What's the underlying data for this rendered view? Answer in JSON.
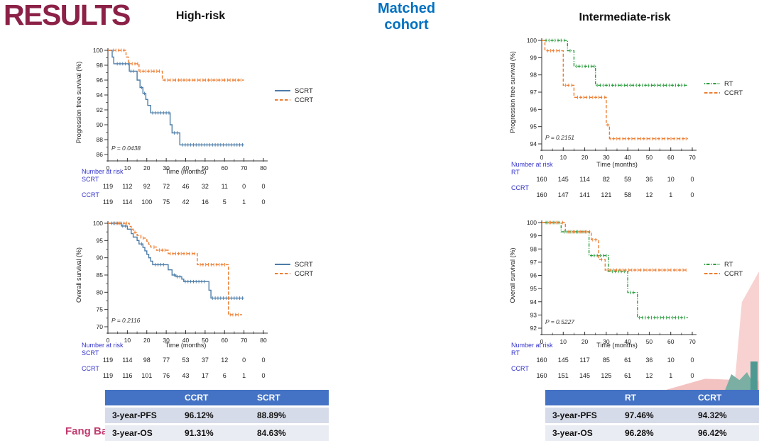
{
  "slide": {
    "title": "RESULTS",
    "cohort_label": "Matched cohort",
    "left_group_label": "High-risk",
    "right_group_label": "Intermediate-risk",
    "author": "Fang Bai"
  },
  "colors": {
    "results_title": "#8C2148",
    "cohort_label": "#0070C0",
    "author": "#C23A6F",
    "scrt_blue": "#4C7CA8",
    "ccrt_orange": "#ED7D31",
    "rt_green": "#2F9E41",
    "risk_label_blue": "#3333CC",
    "table_header_blue": "#4472C4",
    "table_row_light": "#D6DBE9",
    "table_row_lighter": "#EAECF3"
  },
  "chart_data": [
    {
      "id": "hr_pfs",
      "type": "line",
      "subtype": "kaplan-meier-step",
      "group": "High-risk",
      "ylabel": "Progression free survival (%)",
      "xlabel": "Time (months)",
      "xlim": [
        0,
        80
      ],
      "ylim": [
        86,
        100
      ],
      "xticks": [
        0,
        10,
        20,
        30,
        40,
        50,
        60,
        70,
        80
      ],
      "yticks": [
        86,
        88,
        90,
        92,
        94,
        96,
        98,
        100
      ],
      "p_value": "P = 0.0438",
      "legend_position": "right",
      "series": [
        {
          "name": "SCRT",
          "color": "#4C7CA8",
          "style": "solid",
          "points": [
            [
              0,
              100
            ],
            [
              2.2,
              99.1
            ],
            [
              3,
              98.2
            ],
            [
              11,
              97.2
            ],
            [
              15,
              96.0
            ],
            [
              16.5,
              95.0
            ],
            [
              18,
              94.2
            ],
            [
              19.5,
              93.4
            ],
            [
              20.5,
              92.6
            ],
            [
              22,
              91.6
            ],
            [
              32,
              90.0
            ],
            [
              33,
              88.9
            ],
            [
              37,
              87.3
            ],
            [
              70,
              87.3
            ]
          ]
        },
        {
          "name": "CCRT",
          "color": "#ED7D31",
          "style": "dashed",
          "points": [
            [
              0,
              100
            ],
            [
              9.3,
              99.1
            ],
            [
              10.5,
              98.2
            ],
            [
              16,
              97.2
            ],
            [
              28,
              96.0
            ],
            [
              70,
              96.0
            ]
          ]
        }
      ],
      "risk_table": {
        "label": "Number at risk",
        "rows": [
          {
            "name": "SCRT",
            "values": [
              119,
              112,
              92,
              72,
              46,
              32,
              11,
              0,
              0
            ]
          },
          {
            "name": "CCRT",
            "values": [
              119,
              114,
              100,
              75,
              42,
              16,
              5,
              1,
              0
            ]
          }
        ]
      }
    },
    {
      "id": "hr_os",
      "type": "line",
      "subtype": "kaplan-meier-step",
      "group": "High-risk",
      "ylabel": "Overall survival (%)",
      "xlabel": "Time (months)",
      "xlim": [
        0,
        80
      ],
      "ylim": [
        70,
        100
      ],
      "xticks": [
        0,
        10,
        20,
        30,
        40,
        50,
        60,
        70,
        80
      ],
      "yticks": [
        70,
        75,
        80,
        85,
        90,
        95,
        100
      ],
      "p_value": "P = 0.2116",
      "legend_position": "right",
      "series": [
        {
          "name": "SCRT",
          "color": "#4C7CA8",
          "style": "solid",
          "points": [
            [
              0,
              100
            ],
            [
              7,
              99.2
            ],
            [
              10,
              98.3
            ],
            [
              12,
              97.0
            ],
            [
              13,
              96.0
            ],
            [
              15,
              95.0
            ],
            [
              16,
              94.0
            ],
            [
              18,
              93.0
            ],
            [
              19,
              92.0
            ],
            [
              20,
              91.0
            ],
            [
              21,
              90.0
            ],
            [
              22,
              89.0
            ],
            [
              23,
              88.0
            ],
            [
              30,
              88.0
            ],
            [
              31,
              86.5
            ],
            [
              33,
              85.0
            ],
            [
              35,
              84.5
            ],
            [
              38,
              83.8
            ],
            [
              39,
              83.1
            ],
            [
              51,
              83.1
            ],
            [
              52,
              80.6
            ],
            [
              53,
              78.3
            ],
            [
              70,
              78.3
            ]
          ]
        },
        {
          "name": "CCRT",
          "color": "#ED7D31",
          "style": "dashed",
          "points": [
            [
              0,
              100
            ],
            [
              11,
              99.1
            ],
            [
              12,
              98.3
            ],
            [
              13,
              97.4
            ],
            [
              15,
              96.5
            ],
            [
              17,
              95.7
            ],
            [
              20,
              94.8
            ],
            [
              21,
              93.9
            ],
            [
              22,
              93.1
            ],
            [
              25,
              92.2
            ],
            [
              31,
              91.2
            ],
            [
              46,
              88.0
            ],
            [
              62,
              73.5
            ],
            [
              69,
              73.5
            ]
          ]
        }
      ],
      "risk_table": {
        "label": "Number at risk",
        "rows": [
          {
            "name": "SCRT",
            "values": [
              119,
              114,
              98,
              77,
              53,
              37,
              12,
              0,
              0
            ]
          },
          {
            "name": "CCRT",
            "values": [
              119,
              116,
              101,
              76,
              43,
              17,
              6,
              1,
              0
            ]
          }
        ]
      }
    },
    {
      "id": "ir_pfs",
      "type": "line",
      "subtype": "kaplan-meier-step",
      "group": "Intermediate-risk",
      "ylabel": "Progression free survival (%)",
      "xlabel": "Time (months)",
      "xlim": [
        0,
        70
      ],
      "ylim": [
        94,
        100
      ],
      "xticks": [
        0,
        10,
        20,
        30,
        40,
        50,
        60,
        70
      ],
      "yticks": [
        94,
        95,
        96,
        97,
        98,
        99,
        100
      ],
      "p_value": "P = 0.2151",
      "legend_position": "right",
      "series": [
        {
          "name": "RT",
          "color": "#2F9E41",
          "style": "dashdot",
          "points": [
            [
              0,
              100
            ],
            [
              12,
              99.4
            ],
            [
              15,
              98.5
            ],
            [
              25,
              97.4
            ],
            [
              68,
              97.4
            ]
          ]
        },
        {
          "name": "CCRT",
          "color": "#ED7D31",
          "style": "dashed",
          "points": [
            [
              0,
              100
            ],
            [
              1.5,
              99.4
            ],
            [
              10,
              97.4
            ],
            [
              15,
              96.7
            ],
            [
              30,
              95.1
            ],
            [
              31.5,
              94.3
            ],
            [
              68,
              94.3
            ]
          ]
        }
      ],
      "risk_table": {
        "label": "Number at risk",
        "rows": [
          {
            "name": "RT",
            "values": [
              160,
              145,
              114,
              82,
              59,
              36,
              10,
              0
            ]
          },
          {
            "name": "CCRT",
            "values": [
              160,
              147,
              141,
              121,
              58,
              12,
              1,
              0
            ]
          }
        ]
      }
    },
    {
      "id": "ir_os",
      "type": "line",
      "subtype": "kaplan-meier-step",
      "group": "Intermediate-risk",
      "ylabel": "Overall survival (%)",
      "xlabel": "Time (months)",
      "xlim": [
        0,
        70
      ],
      "ylim": [
        92,
        100
      ],
      "xticks": [
        0,
        10,
        20,
        30,
        40,
        50,
        60,
        70
      ],
      "yticks": [
        92,
        93,
        94,
        95,
        96,
        97,
        98,
        99,
        100
      ],
      "p_value": "P = 0.5227",
      "legend_position": "right",
      "series": [
        {
          "name": "RT",
          "color": "#2F9E41",
          "style": "dashdot",
          "points": [
            [
              0,
              100
            ],
            [
              9,
              99.3
            ],
            [
              22,
              97.5
            ],
            [
              31,
              96.3
            ],
            [
              40,
              94.7
            ],
            [
              44.5,
              92.8
            ],
            [
              68,
              92.8
            ]
          ]
        },
        {
          "name": "CCRT",
          "color": "#ED7D31",
          "style": "dashed",
          "points": [
            [
              0,
              100
            ],
            [
              11,
              99.3
            ],
            [
              23,
              98.7
            ],
            [
              26.5,
              97.2
            ],
            [
              29.5,
              96.4
            ],
            [
              68,
              96.4
            ]
          ]
        }
      ],
      "risk_table": {
        "label": "Number at risk",
        "rows": [
          {
            "name": "RT",
            "values": [
              160,
              145,
              117,
              85,
              61,
              36,
              10,
              0
            ]
          },
          {
            "name": "CCRT",
            "values": [
              160,
              151,
              145,
              125,
              61,
              12,
              1,
              0
            ]
          }
        ]
      }
    }
  ],
  "summary_tables": {
    "left": {
      "headers": [
        "",
        "CCRT",
        "SCRT"
      ],
      "rows": [
        [
          "3-year-PFS",
          "96.12%",
          "88.89%"
        ],
        [
          "3-year-OS",
          "91.31%",
          "84.63%"
        ]
      ]
    },
    "right": {
      "headers": [
        "",
        "RT",
        "CCRT"
      ],
      "rows": [
        [
          "3-year-PFS",
          "97.46%",
          "94.32%"
        ],
        [
          "3-year-OS",
          "96.28%",
          "96.42%"
        ]
      ]
    }
  }
}
